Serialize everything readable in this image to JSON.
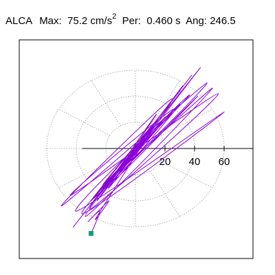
{
  "header": {
    "station": "ALCA",
    "max_label": "Max:",
    "max_value": "75.2",
    "max_unit": "cm/s",
    "max_unit_exp": "2",
    "per_label": "Per:",
    "per_value": "0.460 s",
    "ang_label": "Ang:",
    "ang_value": "246.5"
  },
  "colors": {
    "trace": "#8a00d8",
    "marker": "#10a080",
    "grid": "#9a9a9a",
    "axis": "#000000",
    "frame": "#000000"
  },
  "chart_data": {
    "type": "scatter",
    "title": "",
    "xlabel": "",
    "ylabel": "",
    "radial_ticks": [
      20,
      40,
      60
    ],
    "radial_rings": [
      20,
      40,
      60
    ],
    "spoke_interval_deg": 30,
    "xlim": [
      -80,
      80
    ],
    "ylim": [
      -80,
      80
    ],
    "grid": true,
    "end_marker": {
      "x": -30,
      "y": -65
    },
    "motion_path": {
      "x": [
        0,
        6,
        -8,
        14,
        -20,
        32,
        -26,
        44,
        -34,
        52,
        -16,
        36,
        12,
        -24,
        38,
        -42,
        30,
        -12,
        48,
        -50,
        22,
        8,
        -30,
        56,
        -44,
        26,
        -36,
        60,
        -40,
        18,
        -14,
        42,
        -28,
        6,
        -18,
        30,
        -22,
        12,
        -8,
        20,
        -30,
        10,
        -6,
        4,
        -10,
        14,
        -26,
        -18,
        -32,
        -24,
        -30
      ],
      "y": [
        0,
        10,
        -12,
        26,
        -30,
        48,
        -40,
        62,
        -52,
        46,
        -22,
        40,
        14,
        -34,
        56,
        -60,
        44,
        -18,
        50,
        -44,
        36,
        10,
        -46,
        42,
        -36,
        30,
        -50,
        28,
        -48,
        20,
        -24,
        40,
        -38,
        6,
        -30,
        34,
        -28,
        18,
        -14,
        24,
        -40,
        16,
        -10,
        6,
        -16,
        20,
        -52,
        -40,
        -56,
        -48,
        -65
      ]
    }
  }
}
